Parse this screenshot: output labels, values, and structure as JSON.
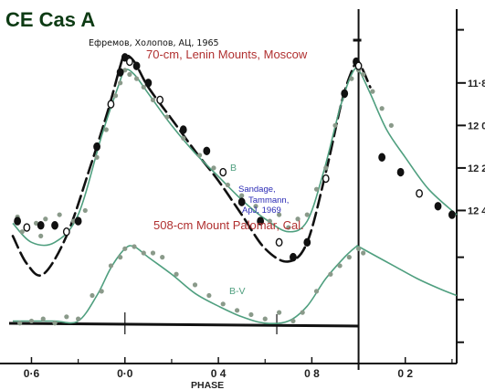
{
  "title": "CE Cas A",
  "credits": {
    "russian": "Ефремов, Холопов, АЦ, 1965",
    "moscow": "70-cm,  Lenin Mounts, Moscow",
    "sandage_1": "Sandage,",
    "sandage_2": "Tammann,",
    "sandage_3": "ApJ, 1969",
    "palomar": "508-cm  Mount Palomar, Cal."
  },
  "colors": {
    "title": "#0d3b14",
    "credit_red": "#b03030",
    "credit_blue": "#2b2bb5",
    "series_green": "#4f9f7f",
    "points_grey": "#8a9a8a",
    "axis": "#111111"
  },
  "chart_data": {
    "type": "scatter",
    "title": "CE Cas A",
    "xlabel": "PHASE",
    "ylabel": "",
    "x_ticks": [
      -0.4,
      0.0,
      0.4,
      0.8,
      1.2
    ],
    "x_tick_labels": [
      "0·6",
      "0·0",
      "0 4",
      "0 8",
      "0 2"
    ],
    "y_ticks": [
      11.8,
      12.0,
      12.2,
      12.4
    ],
    "y_tick_labels": [
      "11·8",
      "12 0",
      "12 2",
      "12 4"
    ],
    "xlim": [
      -0.48,
      1.42
    ],
    "ylim": [
      11.47,
      13.12
    ],
    "series": [
      {
        "name": "B",
        "curve": [
          [
            -0.48,
            12.46
          ],
          [
            -0.4,
            12.55
          ],
          [
            -0.3,
            12.55
          ],
          [
            -0.2,
            12.42
          ],
          [
            -0.1,
            12.05
          ],
          [
            -0.03,
            11.82
          ],
          [
            0.0,
            11.74
          ],
          [
            0.04,
            11.76
          ],
          [
            0.1,
            11.85
          ],
          [
            0.2,
            12.0
          ],
          [
            0.3,
            12.13
          ],
          [
            0.4,
            12.24
          ],
          [
            0.5,
            12.35
          ],
          [
            0.6,
            12.44
          ],
          [
            0.7,
            12.5
          ],
          [
            0.78,
            12.45
          ],
          [
            0.85,
            12.22
          ],
          [
            0.92,
            11.92
          ],
          [
            0.97,
            11.76
          ],
          [
            1.0,
            11.74
          ],
          [
            1.05,
            11.85
          ],
          [
            1.12,
            12.02
          ],
          [
            1.2,
            12.15
          ],
          [
            1.3,
            12.3
          ],
          [
            1.42,
            12.42
          ]
        ],
        "points": [
          [
            -0.46,
            12.43
          ],
          [
            -0.44,
            12.5
          ],
          [
            -0.38,
            12.46
          ],
          [
            -0.36,
            12.52
          ],
          [
            -0.34,
            12.44
          ],
          [
            -0.3,
            12.48
          ],
          [
            -0.28,
            12.42
          ],
          [
            -0.25,
            12.5
          ],
          [
            -0.22,
            12.45
          ],
          [
            -0.17,
            12.4
          ],
          [
            -0.12,
            12.15
          ],
          [
            -0.08,
            12.02
          ],
          [
            -0.04,
            11.86
          ],
          [
            -0.02,
            11.8
          ],
          [
            0.0,
            11.74
          ],
          [
            0.02,
            11.76
          ],
          [
            0.05,
            11.78
          ],
          [
            0.08,
            11.82
          ],
          [
            0.12,
            11.88
          ],
          [
            0.18,
            11.96
          ],
          [
            0.25,
            12.06
          ],
          [
            0.32,
            12.14
          ],
          [
            0.38,
            12.2
          ],
          [
            0.44,
            12.28
          ],
          [
            0.5,
            12.33
          ],
          [
            0.56,
            12.38
          ],
          [
            0.62,
            12.45
          ],
          [
            0.66,
            12.42
          ],
          [
            0.7,
            12.48
          ],
          [
            0.74,
            12.44
          ],
          [
            0.78,
            12.42
          ],
          [
            0.82,
            12.3
          ],
          [
            0.86,
            12.2
          ],
          [
            0.9,
            12.0
          ],
          [
            0.94,
            11.86
          ],
          [
            0.97,
            11.78
          ],
          [
            1.0,
            11.74
          ],
          [
            1.02,
            11.76
          ],
          [
            1.06,
            11.84
          ],
          [
            1.1,
            11.92
          ],
          [
            1.14,
            12.0
          ]
        ]
      },
      {
        "name": "70-cm Moscow",
        "curve": [
          [
            -0.48,
            12.52
          ],
          [
            -0.42,
            12.65
          ],
          [
            -0.35,
            12.7
          ],
          [
            -0.25,
            12.52
          ],
          [
            -0.15,
            12.2
          ],
          [
            -0.07,
            11.92
          ],
          [
            -0.02,
            11.72
          ],
          [
            0.0,
            11.67
          ],
          [
            0.04,
            11.7
          ],
          [
            0.1,
            11.82
          ],
          [
            0.2,
            11.97
          ],
          [
            0.3,
            12.12
          ],
          [
            0.4,
            12.26
          ],
          [
            0.5,
            12.42
          ],
          [
            0.6,
            12.58
          ],
          [
            0.7,
            12.64
          ],
          [
            0.78,
            12.55
          ],
          [
            0.86,
            12.22
          ],
          [
            0.93,
            11.88
          ],
          [
            0.98,
            11.72
          ],
          [
            1.0,
            11.7
          ],
          [
            1.05,
            11.82
          ]
        ],
        "points": [
          [
            -0.46,
            12.45
          ],
          [
            -0.42,
            12.48
          ],
          [
            -0.36,
            12.47
          ],
          [
            -0.3,
            12.47
          ],
          [
            -0.25,
            12.5
          ],
          [
            -0.2,
            12.45
          ],
          [
            -0.12,
            12.1
          ],
          [
            -0.06,
            11.9
          ],
          [
            -0.02,
            11.75
          ],
          [
            0.0,
            11.68
          ],
          [
            0.02,
            11.7
          ],
          [
            0.05,
            11.72
          ],
          [
            0.1,
            11.8
          ],
          [
            0.15,
            11.88
          ],
          [
            0.25,
            12.02
          ],
          [
            0.35,
            12.12
          ],
          [
            0.42,
            12.22
          ],
          [
            0.5,
            12.36
          ],
          [
            0.58,
            12.45
          ],
          [
            0.66,
            12.55
          ],
          [
            0.72,
            12.62
          ],
          [
            0.78,
            12.55
          ],
          [
            0.86,
            12.25
          ],
          [
            0.94,
            11.85
          ],
          [
            0.99,
            11.7
          ],
          [
            1.0,
            11.72
          ],
          [
            1.1,
            12.15
          ],
          [
            1.18,
            12.22
          ],
          [
            1.26,
            12.32
          ],
          [
            1.34,
            12.38
          ],
          [
            1.4,
            12.42
          ]
        ]
      },
      {
        "name": "B-V",
        "curve": [
          [
            -0.48,
            12.92
          ],
          [
            -0.4,
            12.92
          ],
          [
            -0.3,
            12.92
          ],
          [
            -0.2,
            12.92
          ],
          [
            -0.12,
            12.8
          ],
          [
            -0.06,
            12.67
          ],
          [
            0.0,
            12.58
          ],
          [
            0.04,
            12.57
          ],
          [
            0.1,
            12.62
          ],
          [
            0.2,
            12.7
          ],
          [
            0.3,
            12.79
          ],
          [
            0.4,
            12.85
          ],
          [
            0.5,
            12.9
          ],
          [
            0.6,
            12.93
          ],
          [
            0.7,
            12.92
          ],
          [
            0.78,
            12.85
          ],
          [
            0.86,
            12.72
          ],
          [
            0.94,
            12.62
          ],
          [
            0.99,
            12.57
          ],
          [
            1.0,
            12.57
          ],
          [
            1.05,
            12.6
          ],
          [
            1.15,
            12.66
          ],
          [
            1.25,
            12.72
          ],
          [
            1.35,
            12.77
          ],
          [
            1.42,
            12.8
          ]
        ],
        "points": [
          [
            -0.45,
            12.93
          ],
          [
            -0.4,
            12.92
          ],
          [
            -0.35,
            12.91
          ],
          [
            -0.3,
            12.93
          ],
          [
            -0.25,
            12.9
          ],
          [
            -0.2,
            12.91
          ],
          [
            -0.14,
            12.8
          ],
          [
            -0.1,
            12.78
          ],
          [
            -0.06,
            12.66
          ],
          [
            -0.02,
            12.62
          ],
          [
            0.0,
            12.58
          ],
          [
            0.04,
            12.57
          ],
          [
            0.08,
            12.6
          ],
          [
            0.12,
            12.6
          ],
          [
            0.16,
            12.62
          ],
          [
            0.22,
            12.7
          ],
          [
            0.3,
            12.75
          ],
          [
            0.36,
            12.8
          ],
          [
            0.42,
            12.84
          ],
          [
            0.48,
            12.87
          ],
          [
            0.54,
            12.89
          ],
          [
            0.6,
            12.91
          ],
          [
            0.66,
            12.88
          ],
          [
            0.72,
            12.92
          ],
          [
            0.76,
            12.88
          ],
          [
            0.82,
            12.78
          ],
          [
            0.88,
            12.7
          ],
          [
            0.92,
            12.66
          ],
          [
            0.96,
            12.62
          ],
          [
            1.0,
            12.58
          ],
          [
            1.02,
            12.6
          ]
        ]
      }
    ]
  }
}
